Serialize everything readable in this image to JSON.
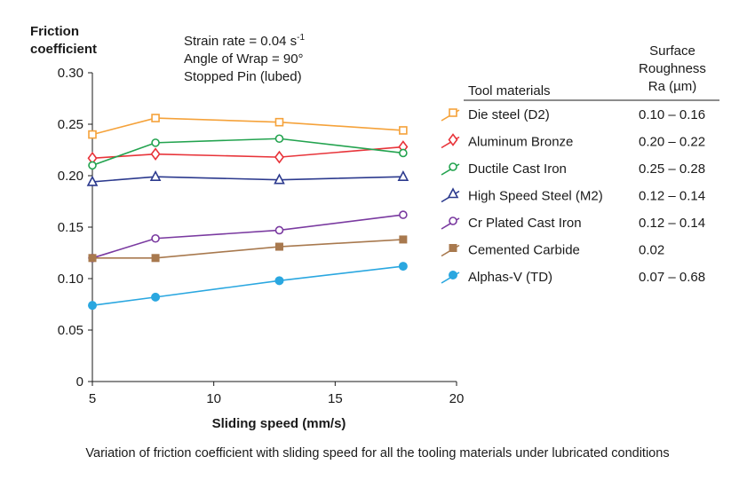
{
  "chart_data": {
    "type": "line",
    "ylabel": [
      "Friction",
      "coefficient"
    ],
    "xlabel": "Sliding speed (mm/s)",
    "xlim": [
      5,
      20
    ],
    "ylim": [
      0,
      0.3
    ],
    "xticks": [
      "5",
      "10",
      "15",
      "20"
    ],
    "yticks": [
      "0",
      "0.05",
      "0.10",
      "0.15",
      "0.20",
      "0.25",
      "0.30"
    ],
    "annotations": {
      "strain_rate": "Strain rate = 0.04 s",
      "strain_rate_sup": "-1",
      "angle": "Angle of Wrap = 90°",
      "pin": "Stopped Pin (lubed)"
    },
    "legend": {
      "header": "Tool materials",
      "roughness_header": [
        "Surface",
        "Roughness",
        "Ra (µm)"
      ]
    },
    "series": [
      {
        "name": "Die steel (D2)",
        "roughness": "0.10 – 0.16",
        "color": "#f5a23a",
        "marker": "square-open",
        "x": [
          5,
          7.6,
          12.7,
          17.8
        ],
        "y": [
          0.24,
          0.256,
          0.252,
          0.244
        ]
      },
      {
        "name": "Aluminum Bronze",
        "roughness": "0.20 – 0.22",
        "color": "#e8343a",
        "marker": "diamond-open",
        "x": [
          5,
          7.6,
          12.7,
          17.8
        ],
        "y": [
          0.217,
          0.221,
          0.218,
          0.228
        ]
      },
      {
        "name": "Ductile Cast Iron",
        "roughness": "0.25 – 0.28",
        "color": "#23a34f",
        "marker": "circle-open",
        "x": [
          5,
          7.6,
          12.7,
          17.8
        ],
        "y": [
          0.21,
          0.232,
          0.236,
          0.222
        ]
      },
      {
        "name": "High Speed Steel (M2)",
        "roughness": "0.12 – 0.14",
        "color": "#2c3a8e",
        "marker": "triangle-open",
        "x": [
          5,
          7.6,
          12.7,
          17.8
        ],
        "y": [
          0.194,
          0.199,
          0.196,
          0.199
        ]
      },
      {
        "name": "Cr Plated Cast Iron",
        "roughness": "0.12 – 0.14",
        "color": "#7a3aa0",
        "marker": "circle-open",
        "x": [
          5,
          7.6,
          12.7,
          17.8
        ],
        "y": [
          0.12,
          0.139,
          0.147,
          0.162
        ]
      },
      {
        "name": "Cemented Carbide",
        "roughness": "0.02",
        "color": "#a8794e",
        "marker": "square-filled",
        "x": [
          5,
          7.6,
          12.7,
          17.8
        ],
        "y": [
          0.12,
          0.12,
          0.131,
          0.138
        ]
      },
      {
        "name": "Alphas-V (TD)",
        "roughness": "0.07 – 0.68",
        "color": "#2aa7e0",
        "marker": "circle-filled",
        "x": [
          5,
          7.6,
          12.7,
          17.8
        ],
        "y": [
          0.074,
          0.082,
          0.098,
          0.112
        ]
      }
    ]
  },
  "caption": "Variation of friction coefficient with sliding speed for all the tooling materials under lubricated conditions"
}
